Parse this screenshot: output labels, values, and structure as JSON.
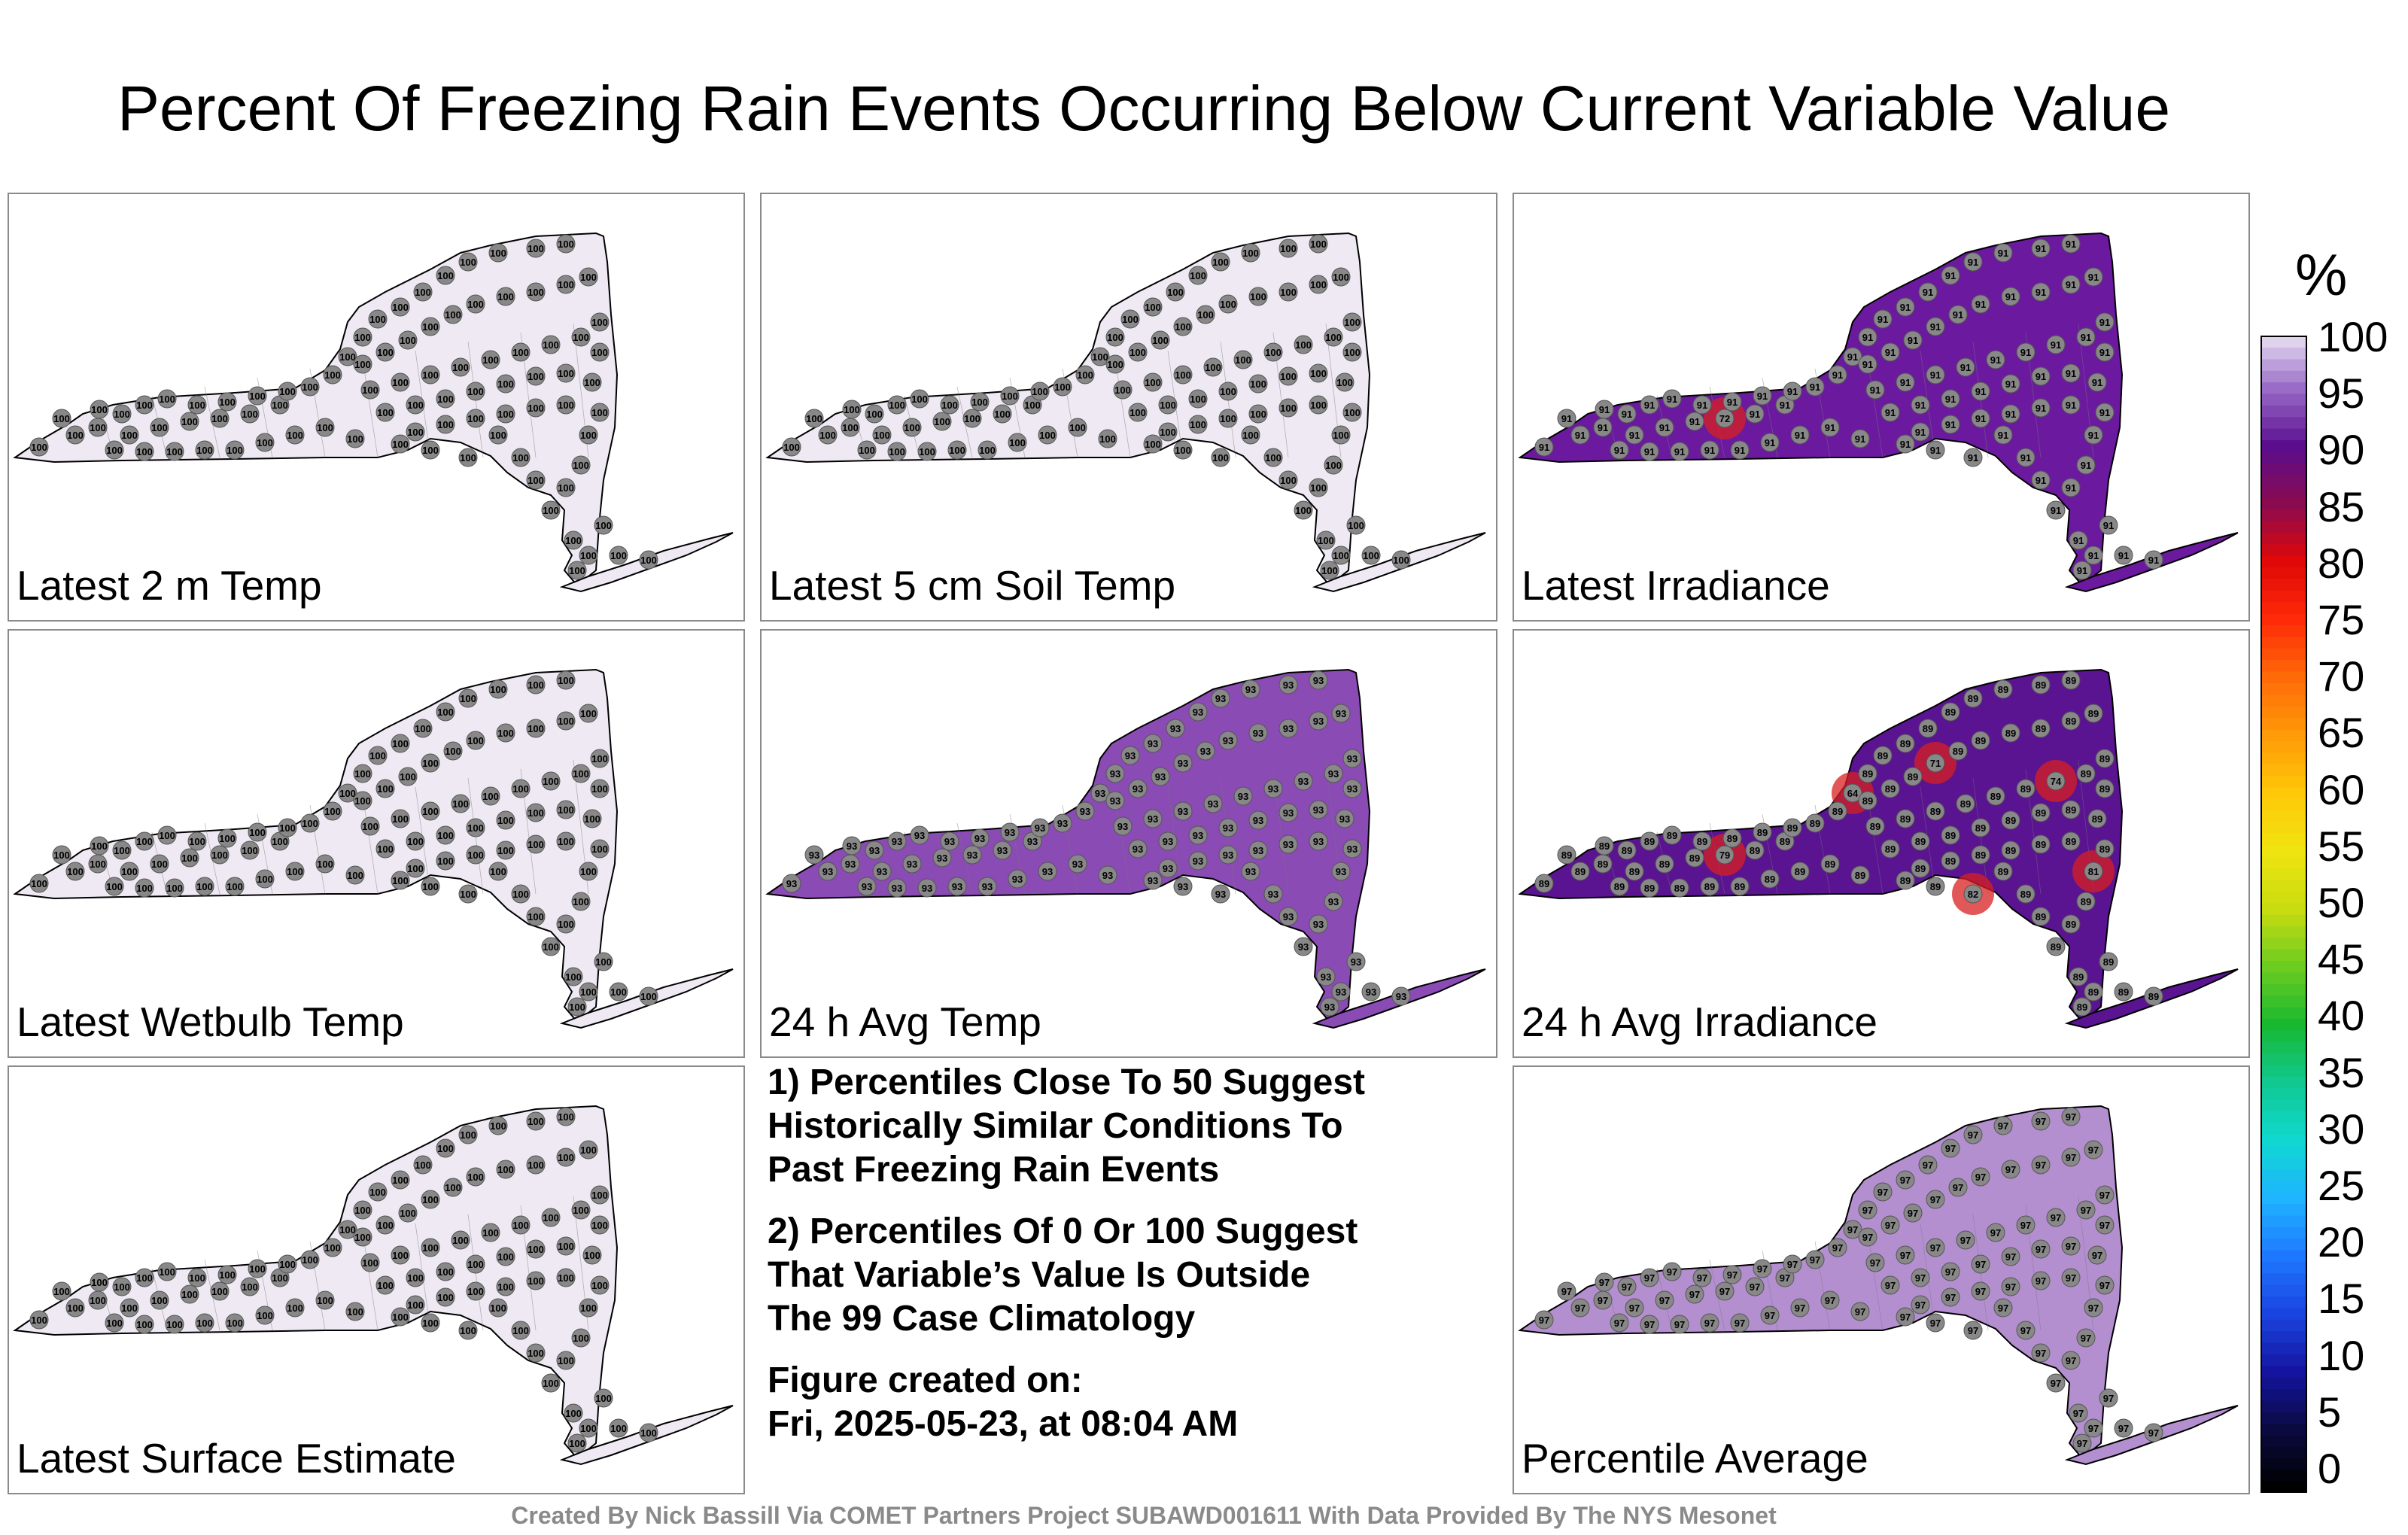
{
  "title": "Percent Of Freezing Rain Events Occurring Below Current Variable Value",
  "panels": [
    {
      "label": "Latest 2 m Temp",
      "fill": "#efe9f4",
      "value": "100",
      "hotspots": []
    },
    {
      "label": "Latest 5 cm Soil Temp",
      "fill": "#efe9f4",
      "value": "100",
      "hotspots": []
    },
    {
      "label": "Latest Irradiance",
      "fill": "#6b1a9f",
      "value": "91",
      "hotspots": [
        "72"
      ]
    },
    {
      "label": "Latest Wetbulb Temp",
      "fill": "#efe9f4",
      "value": "100",
      "hotspots": []
    },
    {
      "label": "24 h Avg Temp",
      "fill": "#8a4bb4",
      "value": "93",
      "hotspots": []
    },
    {
      "label": "24 h Avg Irradiance",
      "fill": "#5a1391",
      "value": "89",
      "hotspots": [
        "79",
        "64",
        "71",
        "74",
        "81",
        "82"
      ]
    },
    {
      "label": "Latest Surface Estimate",
      "fill": "#efe9f4",
      "value": "100",
      "hotspots": []
    },
    {
      "label": "Percentile Average",
      "fill": "#b48fd0",
      "value": "97",
      "hotspots": []
    }
  ],
  "notes": [
    "1) Percentiles Close To 50 Suggest\nHistorically Similar Conditions To\nPast Freezing Rain Events",
    "2) Percentiles Of 0 Or 100 Suggest\nThat Variable’s Value Is Outside\nThe 99 Case Climatology",
    "Figure created on:\nFri, 2025-05-23, at 08:04 AM"
  ],
  "colorbar": {
    "title": "%",
    "ticks": [
      "100",
      "95",
      "90",
      "85",
      "80",
      "75",
      "70",
      "65",
      "60",
      "55",
      "50",
      "45",
      "40",
      "35",
      "30",
      "25",
      "20",
      "15",
      "10",
      "5",
      "0"
    ]
  },
  "credit": "Created By Nick Bassill Via COMET Partners Project SUBAWD001611 With Data Provided By The NYS Mesonet"
}
